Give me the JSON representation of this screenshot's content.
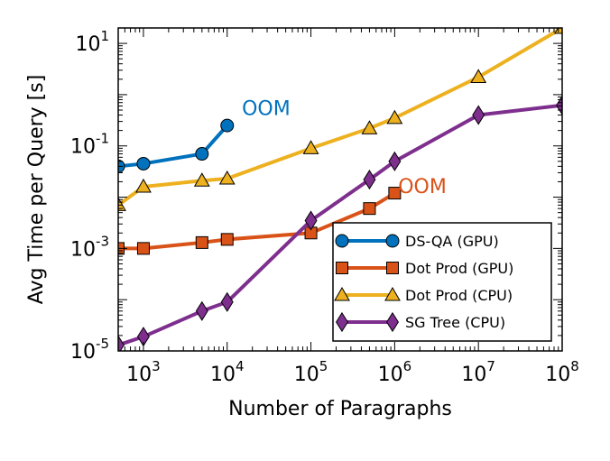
{
  "chart_data": {
    "type": "line",
    "xlabel": "Number of Paragraphs",
    "ylabel": "Avg Time per Query [s]",
    "x_scale": "log",
    "y_scale": "log",
    "xlim": [
      500,
      100000000
    ],
    "ylim": [
      1e-05,
      20
    ],
    "grid": false,
    "legend_position": "lower-right",
    "x_ticks": [
      {
        "base": "10",
        "exp": "3",
        "value": 1000
      },
      {
        "base": "10",
        "exp": "4",
        "value": 10000
      },
      {
        "base": "10",
        "exp": "5",
        "value": 100000
      },
      {
        "base": "10",
        "exp": "6",
        "value": 1000000
      },
      {
        "base": "10",
        "exp": "7",
        "value": 10000000
      },
      {
        "base": "10",
        "exp": "8",
        "value": 100000000
      }
    ],
    "y_ticks": [
      {
        "base": "10",
        "exp": "1",
        "value": 10
      },
      {
        "base": "10",
        "exp": "-1",
        "value": 0.1
      },
      {
        "base": "10",
        "exp": "-3",
        "value": 0.001
      },
      {
        "base": "10",
        "exp": "-5",
        "value": 1e-05
      }
    ],
    "series": [
      {
        "name": "DS-QA (GPU)",
        "color": "#0072BD",
        "marker": "circle",
        "x": [
          500,
          1000,
          5000,
          10000
        ],
        "y": [
          0.04,
          0.045,
          0.07,
          0.25
        ]
      },
      {
        "name": "Dot Prod (GPU)",
        "color": "#D95319",
        "marker": "square",
        "x": [
          500,
          1000,
          5000,
          10000,
          100000,
          500000,
          1000000
        ],
        "y": [
          0.001,
          0.001,
          0.0013,
          0.0015,
          0.002,
          0.006,
          0.012
        ]
      },
      {
        "name": "Dot Prod (CPU)",
        "color": "#EDB120",
        "marker": "triangle",
        "x": [
          500,
          1000,
          5000,
          10000,
          100000,
          500000,
          1000000,
          10000000,
          100000000
        ],
        "y": [
          0.007,
          0.016,
          0.021,
          0.023,
          0.09,
          0.22,
          0.35,
          2.2,
          20
        ]
      },
      {
        "name": "SG Tree (CPU)",
        "color": "#7E2F8E",
        "marker": "diamond",
        "x": [
          500,
          1000,
          5000,
          10000,
          100000,
          500000,
          1000000,
          10000000,
          100000000
        ],
        "y": [
          1.3e-05,
          1.9e-05,
          6e-05,
          9e-05,
          0.0035,
          0.022,
          0.05,
          0.4,
          0.62
        ]
      }
    ],
    "annotations": [
      {
        "text": "OOM",
        "color": "#0072BD",
        "x": 15000,
        "y": 0.4
      },
      {
        "text": "OOM",
        "color": "#D95319",
        "x": 1100000,
        "y": 0.012
      }
    ]
  }
}
